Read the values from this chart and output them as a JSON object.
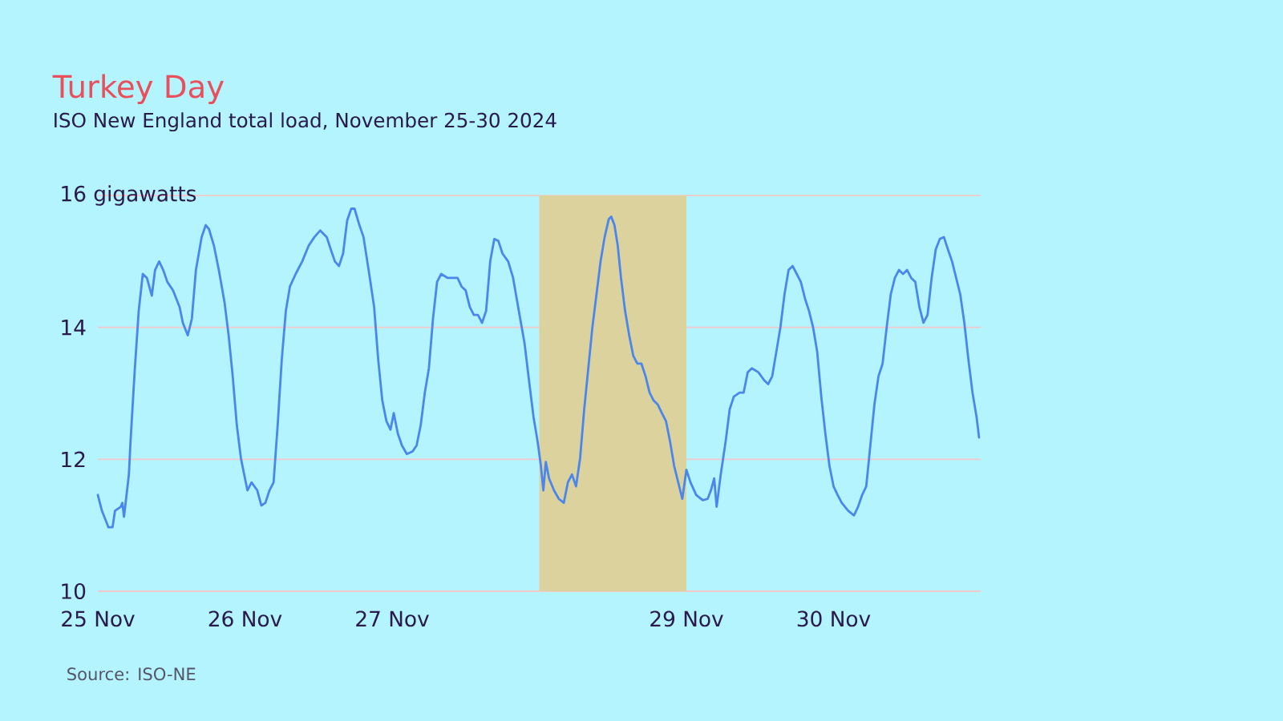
{
  "chart_data": {
    "type": "line",
    "title": "Turkey Day",
    "subtitle": "ISO New England total load, November 25-30 2024",
    "annotations": [
      "Source: ISO-NE"
    ],
    "x": [
      "2024-11-25T00:00",
      "2024-11-25T00:40",
      "2024-11-25T01:44",
      "2024-11-25T02:24",
      "2024-11-25T02:48",
      "2024-11-25T03:44",
      "2024-11-25T04:00",
      "2024-11-25T04:16",
      "2024-11-25T05:04",
      "2024-11-25T05:20",
      "2024-11-25T06:00",
      "2024-11-25T06:40",
      "2024-11-25T07:20",
      "2024-11-25T08:00",
      "2024-11-25T08:48",
      "2024-11-25T09:20",
      "2024-11-25T10:00",
      "2024-11-25T10:40",
      "2024-11-25T11:20",
      "2024-11-25T12:16",
      "2024-11-25T13:20",
      "2024-11-25T13:52",
      "2024-11-25T14:40",
      "2024-11-25T15:20",
      "2024-11-25T16:00",
      "2024-11-25T16:56",
      "2024-11-25T17:36",
      "2024-11-25T18:08",
      "2024-11-25T18:56",
      "2024-11-25T19:44",
      "2024-11-25T20:40",
      "2024-11-25T21:20",
      "2024-11-25T22:00",
      "2024-11-25T22:40",
      "2024-11-25T23:20",
      "2024-11-26T00:00",
      "2024-11-26T00:24",
      "2024-11-26T01:04",
      "2024-11-26T02:00",
      "2024-11-26T02:40",
      "2024-11-26T03:20",
      "2024-11-26T04:00",
      "2024-11-26T04:40",
      "2024-11-26T05:20",
      "2024-11-26T06:00",
      "2024-11-26T06:40",
      "2024-11-26T07:20",
      "2024-11-26T08:16",
      "2024-11-26T09:20",
      "2024-11-26T10:24",
      "2024-11-26T11:20",
      "2024-11-26T12:16",
      "2024-11-26T13:20",
      "2024-11-26T14:00",
      "2024-11-26T14:40",
      "2024-11-26T15:20",
      "2024-11-26T16:00",
      "2024-11-26T16:40",
      "2024-11-26T17:20",
      "2024-11-26T17:52",
      "2024-11-26T18:40",
      "2024-11-26T19:20",
      "2024-11-26T20:16",
      "2024-11-26T21:04",
      "2024-11-26T21:44",
      "2024-11-26T22:24",
      "2024-11-26T23:04",
      "2024-11-26T23:44",
      "2024-11-27T00:16",
      "2024-11-27T00:56",
      "2024-11-27T01:36",
      "2024-11-27T02:24",
      "2024-11-27T03:20",
      "2024-11-27T04:00",
      "2024-11-27T04:40",
      "2024-11-27T05:20",
      "2024-11-27T06:00",
      "2024-11-27T06:40",
      "2024-11-27T07:20",
      "2024-11-27T08:00",
      "2024-11-27T09:04",
      "2024-11-27T10:00",
      "2024-11-27T10:40",
      "2024-11-27T11:20",
      "2024-11-27T12:00",
      "2024-11-27T12:40",
      "2024-11-27T13:20",
      "2024-11-27T14:00",
      "2024-11-27T14:40",
      "2024-11-27T15:20",
      "2024-11-27T16:00",
      "2024-11-27T16:40",
      "2024-11-27T17:20",
      "2024-11-27T18:00",
      "2024-11-27T18:56",
      "2024-11-27T19:44",
      "2024-11-27T20:40",
      "2024-11-27T21:36",
      "2024-11-27T22:24",
      "2024-11-27T23:04",
      "2024-11-27T23:44",
      "2024-11-28T00:16",
      "2024-11-28T00:40",
      "2024-11-28T01:04",
      "2024-11-28T01:36",
      "2024-11-28T02:24",
      "2024-11-28T03:12",
      "2024-11-28T04:00",
      "2024-11-28T04:40",
      "2024-11-28T05:20",
      "2024-11-28T06:00",
      "2024-11-28T06:40",
      "2024-11-28T07:20",
      "2024-11-28T08:00",
      "2024-11-28T08:40",
      "2024-11-28T09:20",
      "2024-11-28T10:00",
      "2024-11-28T10:40",
      "2024-11-28T11:20",
      "2024-11-28T11:44",
      "2024-11-28T12:16",
      "2024-11-28T12:48",
      "2024-11-28T13:20",
      "2024-11-28T14:00",
      "2024-11-28T14:40",
      "2024-11-28T15:20",
      "2024-11-28T16:00",
      "2024-11-28T16:40",
      "2024-11-28T17:20",
      "2024-11-28T18:00",
      "2024-11-28T18:40",
      "2024-11-28T19:20",
      "2024-11-28T20:00",
      "2024-11-28T20:40",
      "2024-11-28T21:20",
      "2024-11-28T22:00",
      "2024-11-28T22:40",
      "2024-11-28T23:20",
      "2024-11-29T00:00",
      "2024-11-29T00:40",
      "2024-11-29T01:36",
      "2024-11-29T02:40",
      "2024-11-29T03:28",
      "2024-11-29T04:00",
      "2024-11-29T04:32",
      "2024-11-29T04:56",
      "2024-11-29T05:36",
      "2024-11-29T06:24",
      "2024-11-29T07:04",
      "2024-11-29T07:44",
      "2024-11-29T08:40",
      "2024-11-29T09:20",
      "2024-11-29T10:00",
      "2024-11-29T10:40",
      "2024-11-29T11:44",
      "2024-11-29T12:40",
      "2024-11-29T13:20",
      "2024-11-29T14:00",
      "2024-11-29T14:40",
      "2024-11-29T15:20",
      "2024-11-29T16:00",
      "2024-11-29T16:40",
      "2024-11-29T17:20",
      "2024-11-29T18:00",
      "2024-11-29T18:40",
      "2024-11-29T19:20",
      "2024-11-29T20:00",
      "2024-11-29T20:40",
      "2024-11-29T21:20",
      "2024-11-29T22:00",
      "2024-11-29T22:40",
      "2024-11-29T23:20",
      "2024-11-30T00:00",
      "2024-11-30T00:40",
      "2024-11-30T01:20",
      "2024-11-30T02:24",
      "2024-11-30T03:20",
      "2024-11-30T04:00",
      "2024-11-30T04:40",
      "2024-11-30T05:20",
      "2024-11-30T06:00",
      "2024-11-30T06:40",
      "2024-11-30T07:20",
      "2024-11-30T08:00",
      "2024-11-30T08:40",
      "2024-11-30T09:20",
      "2024-11-30T10:00",
      "2024-11-30T10:40",
      "2024-11-30T11:20",
      "2024-11-30T12:00",
      "2024-11-30T12:40",
      "2024-11-30T13:20",
      "2024-11-30T14:00",
      "2024-11-30T14:40",
      "2024-11-30T15:20",
      "2024-11-30T16:00",
      "2024-11-30T16:40",
      "2024-11-30T17:20",
      "2024-11-30T18:00",
      "2024-11-30T18:40",
      "2024-11-30T19:20",
      "2024-11-30T20:00",
      "2024-11-30T20:40",
      "2024-11-30T21:20",
      "2024-11-30T22:00",
      "2024-11-30T22:40",
      "2024-11-30T23:20",
      "2024-11-30T23:44"
    ],
    "series": [
      {
        "color": "#4a86ec",
        "values": [
          11.46,
          11.22,
          10.97,
          10.97,
          11.22,
          11.28,
          11.34,
          11.13,
          11.77,
          12.27,
          13.32,
          14.25,
          14.81,
          14.75,
          14.48,
          14.87,
          15.0,
          14.87,
          14.69,
          14.56,
          14.31,
          14.07,
          13.88,
          14.13,
          14.87,
          15.37,
          15.55,
          15.49,
          15.24,
          14.87,
          14.38,
          13.88,
          13.26,
          12.52,
          12.02,
          11.71,
          11.53,
          11.65,
          11.53,
          11.3,
          11.34,
          11.53,
          11.65,
          12.52,
          13.51,
          14.25,
          14.62,
          14.81,
          15.0,
          15.24,
          15.37,
          15.47,
          15.37,
          15.18,
          15.0,
          14.93,
          15.12,
          15.62,
          15.8,
          15.8,
          15.55,
          15.37,
          14.81,
          14.31,
          13.51,
          12.89,
          12.58,
          12.45,
          12.7,
          12.39,
          12.21,
          12.08,
          12.12,
          12.21,
          12.52,
          13.01,
          13.38,
          14.13,
          14.69,
          14.81,
          14.75,
          14.75,
          14.75,
          14.62,
          14.56,
          14.31,
          14.19,
          14.19,
          14.07,
          14.25,
          15.0,
          15.34,
          15.31,
          15.12,
          15.0,
          14.75,
          14.25,
          13.76,
          13.14,
          12.64,
          12.27,
          11.9,
          11.53,
          11.96,
          11.71,
          11.53,
          11.4,
          11.34,
          11.65,
          11.77,
          11.59,
          12.02,
          12.76,
          13.38,
          14.0,
          14.5,
          15.0,
          15.37,
          15.64,
          15.68,
          15.55,
          15.24,
          14.75,
          14.25,
          13.88,
          13.57,
          13.45,
          13.45,
          13.26,
          13.01,
          12.89,
          12.83,
          12.7,
          12.58,
          12.27,
          11.9,
          11.65,
          11.4,
          11.84,
          11.65,
          11.46,
          11.38,
          11.4,
          11.53,
          11.71,
          11.28,
          11.77,
          12.27,
          12.76,
          12.95,
          13.01,
          13.01,
          13.32,
          13.38,
          13.32,
          13.2,
          13.14,
          13.26,
          13.63,
          14.0,
          14.5,
          14.87,
          14.93,
          14.81,
          14.69,
          14.44,
          14.25,
          14.0,
          13.63,
          12.95,
          12.39,
          11.9,
          11.59,
          11.46,
          11.34,
          11.22,
          11.15,
          11.28,
          11.46,
          11.59,
          12.21,
          12.83,
          13.26,
          13.45,
          14.0,
          14.5,
          14.75,
          14.87,
          14.81,
          14.87,
          14.75,
          14.69,
          14.31,
          14.07,
          14.19,
          14.75,
          15.18,
          15.34,
          15.37,
          15.18,
          15.0,
          14.75,
          14.5,
          14.07,
          13.51,
          13.01,
          12.64,
          12.33
        ]
      }
    ],
    "xlim": [
      "2024-11-25",
      "2024-12-01"
    ],
    "xticks": [
      {
        "value": "2024-11-25",
        "label": "25 Nov"
      },
      {
        "value": "2024-11-26",
        "label": "26 Nov"
      },
      {
        "value": "2024-11-27",
        "label": "27 Nov"
      },
      {
        "value": "2024-11-29",
        "label": "29 Nov"
      },
      {
        "value": "2024-11-30",
        "label": "30 Nov"
      }
    ],
    "ylim": [
      10,
      16
    ],
    "yticks": [
      10,
      12,
      14,
      {
        "value": 16,
        "label": "16 gigawatts"
      }
    ],
    "grid": "y",
    "bands": [
      {
        "axis": "x",
        "from": "2024-11-28",
        "to": "2024-11-29",
        "color": "#dcd29e"
      }
    ]
  }
}
